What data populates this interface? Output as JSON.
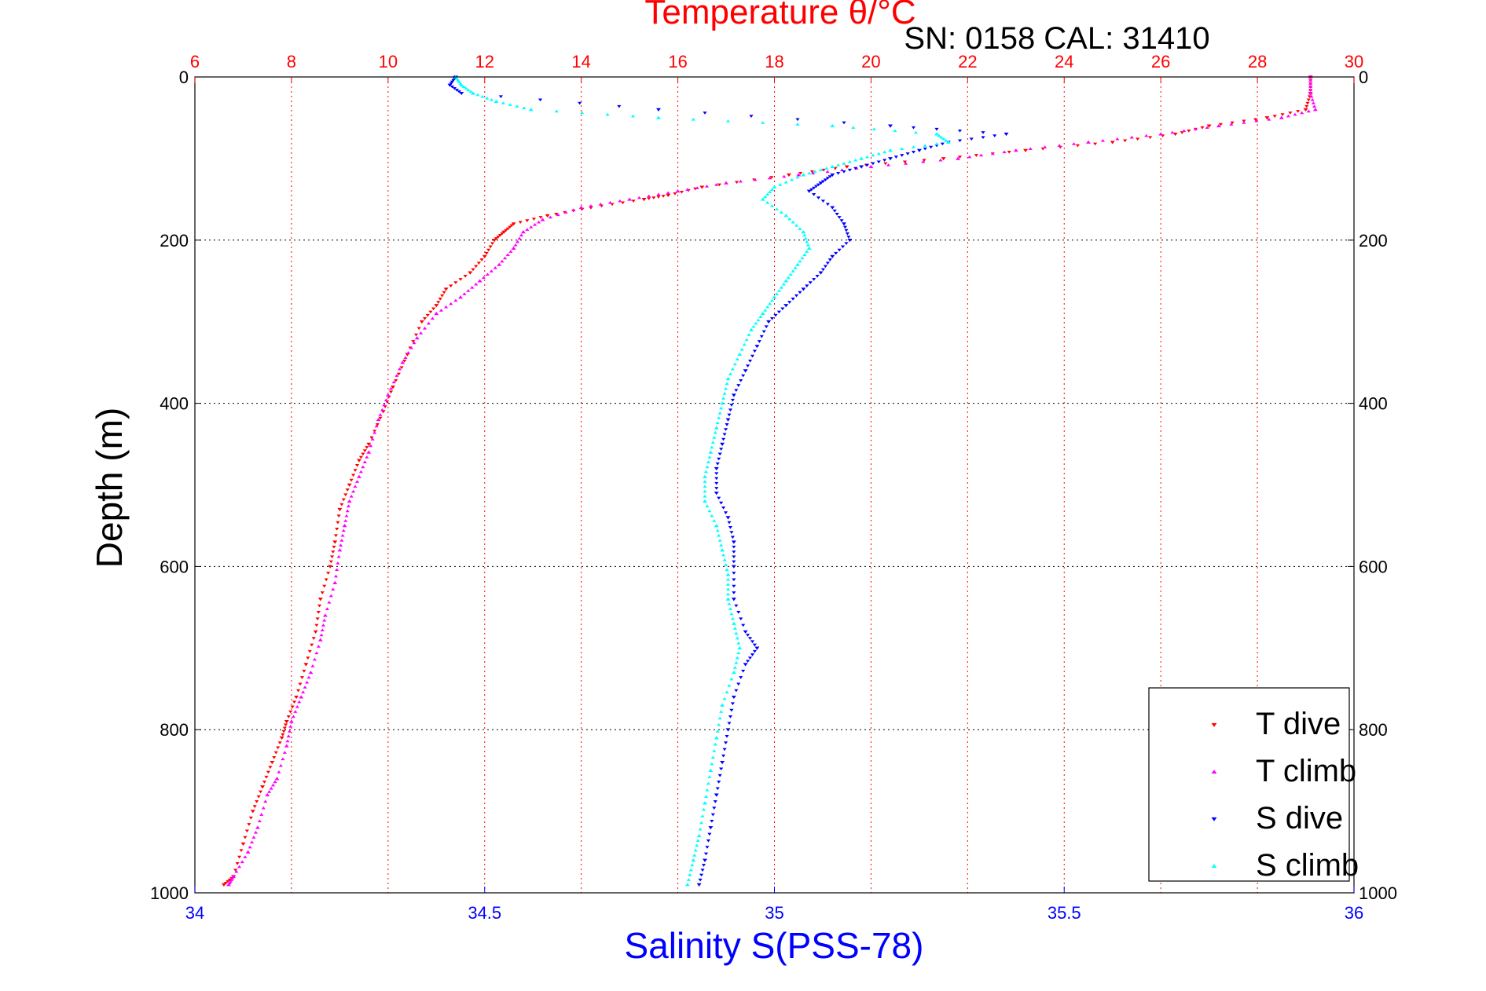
{
  "header": {
    "title": "Temperature θ/°C",
    "serial_note": "SN: 0158  CAL: 31410"
  },
  "colors": {
    "temperature_axis": "#ff0000",
    "salinity_axis": "#0000ff",
    "t_dive": "#ff0000",
    "t_climb": "#ff00ff",
    "s_dive": "#0000ff",
    "s_climb": "#00ffff"
  },
  "chart_data": {
    "type": "scatter",
    "title": "Temperature θ/°C",
    "xlabel": "Salinity S(PSS-78)",
    "ylabel": "Depth (m)",
    "top_axis": {
      "label": "Temperature θ/°C",
      "range": [
        6,
        30
      ],
      "ticks": [
        "6",
        "8",
        "10",
        "12",
        "14",
        "16",
        "18",
        "20",
        "22",
        "24",
        "26",
        "28",
        "30"
      ]
    },
    "bottom_axis": {
      "label": "Salinity S(PSS-78)",
      "range": [
        34,
        36
      ],
      "ticks": [
        "34",
        "34.5",
        "35",
        "35.5",
        "36"
      ]
    },
    "y_axis": {
      "label": "Depth (m)",
      "range": [
        0,
        1000
      ],
      "reversed": true,
      "ticks": [
        "0",
        "200",
        "400",
        "600",
        "800",
        "1000"
      ]
    },
    "grid": true,
    "legend_position": "bottom-right",
    "legend": [
      "T dive",
      "T climb",
      "S dive",
      "S climb"
    ],
    "series": [
      {
        "name": "T dive",
        "axis": "temperature",
        "marker": "triangle-down",
        "points": [
          [
            29.1,
            0
          ],
          [
            29.1,
            20
          ],
          [
            29.0,
            40
          ],
          [
            28.2,
            50
          ],
          [
            27.0,
            60
          ],
          [
            26.3,
            70
          ],
          [
            25.0,
            80
          ],
          [
            23.2,
            90
          ],
          [
            21.5,
            100
          ],
          [
            19.5,
            110
          ],
          [
            18.3,
            120
          ],
          [
            16.5,
            135
          ],
          [
            15.8,
            145
          ],
          [
            15.3,
            150
          ],
          [
            14.2,
            160
          ],
          [
            13.3,
            170
          ],
          [
            12.6,
            180
          ],
          [
            12.4,
            190
          ],
          [
            12.2,
            200
          ],
          [
            12.0,
            220
          ],
          [
            11.7,
            240
          ],
          [
            11.2,
            260
          ],
          [
            11.0,
            280
          ],
          [
            10.7,
            300
          ],
          [
            10.4,
            340
          ],
          [
            10.1,
            380
          ],
          [
            9.9,
            410
          ],
          [
            9.6,
            450
          ],
          [
            9.4,
            470
          ],
          [
            9.2,
            500
          ],
          [
            9.0,
            530
          ],
          [
            8.9,
            570
          ],
          [
            8.8,
            600
          ],
          [
            8.6,
            640
          ],
          [
            8.5,
            680
          ],
          [
            8.3,
            720
          ],
          [
            8.1,
            760
          ],
          [
            7.9,
            790
          ],
          [
            7.8,
            810
          ],
          [
            7.6,
            840
          ],
          [
            7.4,
            870
          ],
          [
            7.2,
            900
          ],
          [
            7.0,
            940
          ],
          [
            6.8,
            980
          ],
          [
            6.6,
            990
          ]
        ]
      },
      {
        "name": "T climb",
        "axis": "temperature",
        "marker": "triangle-up",
        "points": [
          [
            29.1,
            0
          ],
          [
            29.1,
            20
          ],
          [
            29.2,
            40
          ],
          [
            28.5,
            50
          ],
          [
            27.2,
            60
          ],
          [
            26.0,
            70
          ],
          [
            24.5,
            80
          ],
          [
            23.0,
            90
          ],
          [
            21.8,
            100
          ],
          [
            20.0,
            110
          ],
          [
            18.5,
            120
          ],
          [
            17.0,
            130
          ],
          [
            16.0,
            140
          ],
          [
            15.0,
            150
          ],
          [
            14.0,
            160
          ],
          [
            13.2,
            175
          ],
          [
            12.8,
            190
          ],
          [
            12.6,
            210
          ],
          [
            12.3,
            230
          ],
          [
            11.9,
            250
          ],
          [
            11.5,
            270
          ],
          [
            11.0,
            290
          ],
          [
            10.6,
            320
          ],
          [
            10.3,
            350
          ],
          [
            10.0,
            390
          ],
          [
            9.8,
            420
          ],
          [
            9.6,
            460
          ],
          [
            9.4,
            490
          ],
          [
            9.2,
            520
          ],
          [
            9.1,
            550
          ],
          [
            9.0,
            580
          ],
          [
            8.9,
            620
          ],
          [
            8.7,
            660
          ],
          [
            8.6,
            690
          ],
          [
            8.4,
            730
          ],
          [
            8.2,
            760
          ],
          [
            8.0,
            790
          ],
          [
            7.9,
            820
          ],
          [
            7.7,
            860
          ],
          [
            7.5,
            880
          ],
          [
            7.3,
            920
          ],
          [
            7.1,
            950
          ],
          [
            6.8,
            980
          ],
          [
            6.7,
            990
          ]
        ]
      },
      {
        "name": "S dive",
        "axis": "salinity",
        "marker": "triangle-down",
        "points": [
          [
            34.45,
            0
          ],
          [
            34.44,
            10
          ],
          [
            34.46,
            20
          ],
          [
            34.8,
            40
          ],
          [
            35.2,
            60
          ],
          [
            35.4,
            70
          ],
          [
            35.3,
            80
          ],
          [
            35.25,
            90
          ],
          [
            35.2,
            100
          ],
          [
            35.15,
            110
          ],
          [
            35.1,
            120
          ],
          [
            35.08,
            130
          ],
          [
            35.06,
            140
          ],
          [
            35.1,
            160
          ],
          [
            35.12,
            180
          ],
          [
            35.13,
            200
          ],
          [
            35.1,
            220
          ],
          [
            35.08,
            240
          ],
          [
            35.05,
            260
          ],
          [
            35.02,
            280
          ],
          [
            34.99,
            300
          ],
          [
            34.97,
            330
          ],
          [
            34.95,
            360
          ],
          [
            34.93,
            390
          ],
          [
            34.92,
            420
          ],
          [
            34.91,
            450
          ],
          [
            34.9,
            480
          ],
          [
            34.9,
            510
          ],
          [
            34.92,
            540
          ],
          [
            34.93,
            570
          ],
          [
            34.93,
            600
          ],
          [
            34.93,
            640
          ],
          [
            34.95,
            680
          ],
          [
            34.97,
            700
          ],
          [
            34.95,
            720
          ],
          [
            34.93,
            760
          ],
          [
            34.92,
            800
          ],
          [
            34.91,
            840
          ],
          [
            34.9,
            880
          ],
          [
            34.89,
            920
          ],
          [
            34.88,
            960
          ],
          [
            34.87,
            990
          ]
        ]
      },
      {
        "name": "S climb",
        "axis": "salinity",
        "marker": "triangle-up",
        "points": [
          [
            34.45,
            0
          ],
          [
            34.46,
            10
          ],
          [
            34.48,
            20
          ],
          [
            34.52,
            30
          ],
          [
            34.58,
            40
          ],
          [
            34.8,
            50
          ],
          [
            35.1,
            60
          ],
          [
            35.28,
            70
          ],
          [
            35.3,
            80
          ],
          [
            35.2,
            90
          ],
          [
            35.15,
            100
          ],
          [
            35.1,
            110
          ],
          [
            35.05,
            120
          ],
          [
            35.0,
            135
          ],
          [
            34.98,
            150
          ],
          [
            35.02,
            170
          ],
          [
            35.05,
            190
          ],
          [
            35.06,
            210
          ],
          [
            35.04,
            230
          ],
          [
            35.02,
            250
          ],
          [
            35.0,
            270
          ],
          [
            34.98,
            290
          ],
          [
            34.96,
            310
          ],
          [
            34.94,
            340
          ],
          [
            34.92,
            370
          ],
          [
            34.91,
            400
          ],
          [
            34.9,
            430
          ],
          [
            34.89,
            460
          ],
          [
            34.88,
            490
          ],
          [
            34.88,
            520
          ],
          [
            34.9,
            550
          ],
          [
            34.91,
            580
          ],
          [
            34.92,
            610
          ],
          [
            34.92,
            640
          ],
          [
            34.93,
            670
          ],
          [
            34.94,
            700
          ],
          [
            34.93,
            730
          ],
          [
            34.91,
            770
          ],
          [
            34.9,
            810
          ],
          [
            34.89,
            850
          ],
          [
            34.88,
            890
          ],
          [
            34.87,
            930
          ],
          [
            34.86,
            960
          ],
          [
            34.85,
            990
          ]
        ]
      }
    ]
  }
}
